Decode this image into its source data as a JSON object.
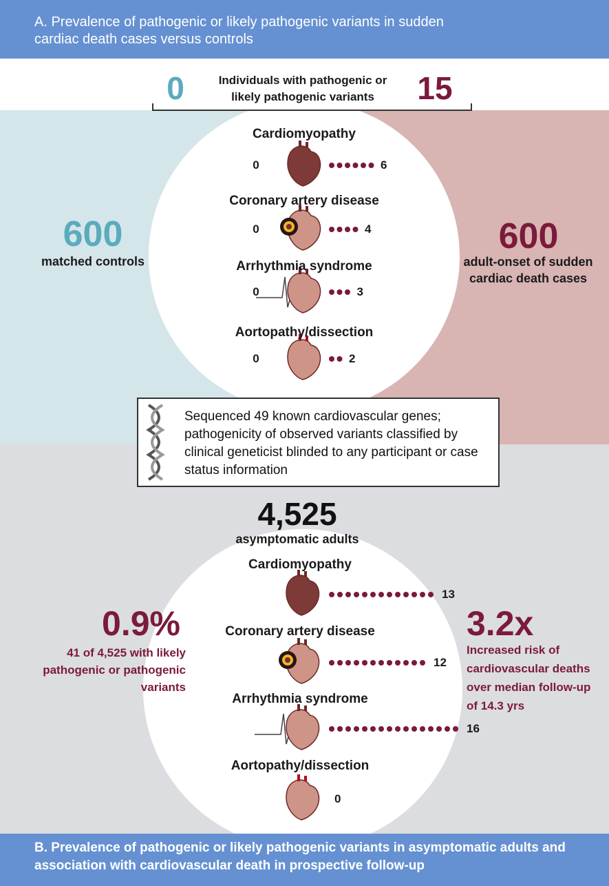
{
  "section_a": {
    "title": "A. Prevalence of pathogenic or likely pathogenic variants in sudden cardiac death cases versus controls",
    "individuals_label": "Individuals with pathogenic or likely pathogenic variants",
    "controls_with_variants": 0,
    "cases_with_variants": 15,
    "controls": {
      "count": 600,
      "label": "matched controls"
    },
    "cases": {
      "count": 600,
      "label": "adult-onset of sudden cardiac death cases"
    },
    "categories": [
      {
        "name": "Cardiomyopathy",
        "controls": 0,
        "cases": 6
      },
      {
        "name": "Coronary artery disease",
        "controls": 0,
        "cases": 4
      },
      {
        "name": "Arrhythmia syndrome",
        "controls": 0,
        "cases": 3
      },
      {
        "name": "Aortopathy/dissection",
        "controls": 0,
        "cases": 2
      }
    ]
  },
  "methods_box": "Sequenced 49 known cardiovascular genes; pathogenicity of observed variants classified by clinical geneticist blinded to any participant or case status information",
  "section_b": {
    "total": {
      "value": 4525,
      "label": "4,525"
    },
    "total_label": "asymptomatic adults",
    "prevalence": {
      "value": 0.9,
      "label": "0.9%"
    },
    "prevalence_label": "41 of 4,525 with likely pathogenic or pathogenic variants",
    "risk": {
      "value": 3.2,
      "label": "3.2x"
    },
    "risk_label": "Increased risk of cardiovascular deaths over median follow-up of 14.3 yrs",
    "categories": [
      {
        "name": "Cardiomyopathy",
        "count": 13
      },
      {
        "name": "Coronary artery disease",
        "count": 12
      },
      {
        "name": "Arrhythmia syndrome",
        "count": 16
      },
      {
        "name": "Aortopathy/dissection",
        "count": 0
      }
    ],
    "title": "B. Prevalence of pathogenic or likely pathogenic variants in asymptomatic adults and association with cardiovascular death in prospective follow-up"
  }
}
